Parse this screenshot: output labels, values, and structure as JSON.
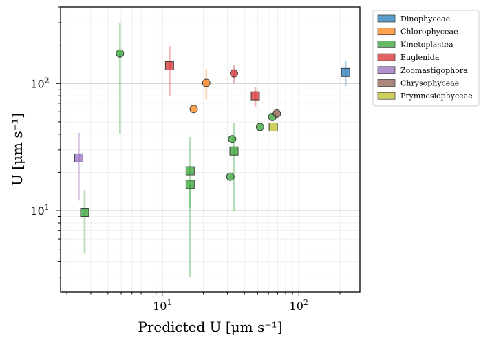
{
  "chart_data": {
    "type": "scatter",
    "xscale": "log",
    "yscale": "log",
    "xlim": [
      1.8,
      280
    ],
    "ylim": [
      2.3,
      400
    ],
    "xlabel": "Predicted U [μm s⁻¹]",
    "ylabel": "U [μm s⁻¹]",
    "x_ticks": [
      {
        "base": "10",
        "exp": "1",
        "value": 10
      },
      {
        "base": "10",
        "exp": "2",
        "value": 100
      }
    ],
    "y_ticks": [
      {
        "base": "10",
        "exp": "1",
        "value": 10
      },
      {
        "base": "10",
        "exp": "2",
        "value": 100
      }
    ],
    "grid": true,
    "legend_position": "outside-top-right",
    "series": [
      {
        "name": "Dinophyceae",
        "color": "#1f77b4",
        "points": [
          {
            "x": 220,
            "y": 122,
            "marker": "square",
            "ylo": 95,
            "yhi": 150
          }
        ]
      },
      {
        "name": "Chlorophyceae",
        "color": "#ff7f0e",
        "points": [
          {
            "x": 21,
            "y": 101,
            "marker": "circle",
            "ylo": 75,
            "yhi": 128
          },
          {
            "x": 17,
            "y": 63,
            "marker": "circle"
          }
        ]
      },
      {
        "name": "Kinetoplastea",
        "color": "#2ca02c",
        "points": [
          {
            "x": 4.9,
            "y": 172,
            "marker": "circle",
            "ylo": 40,
            "yhi": 300
          },
          {
            "x": 2.7,
            "y": 9.7,
            "marker": "square",
            "ylo": 4.6,
            "yhi": 14.5
          },
          {
            "x": 16,
            "y": 20.6,
            "marker": "square",
            "ylo": 10.5,
            "yhi": 38
          },
          {
            "x": 16,
            "y": 16.1,
            "marker": "square",
            "ylo": 3.0,
            "yhi": 16.1
          },
          {
            "x": 33.5,
            "y": 29.5,
            "marker": "square",
            "ylo": 10,
            "yhi": 49
          },
          {
            "x": 32.5,
            "y": 36.5,
            "marker": "circle"
          },
          {
            "x": 31.5,
            "y": 18.5,
            "marker": "circle"
          },
          {
            "x": 52,
            "y": 45.5,
            "marker": "circle"
          },
          {
            "x": 64,
            "y": 54.5,
            "marker": "circle"
          }
        ]
      },
      {
        "name": "Euglenida",
        "color": "#d62728",
        "points": [
          {
            "x": 11.3,
            "y": 138,
            "marker": "square",
            "ylo": 80,
            "yhi": 196
          },
          {
            "x": 33.5,
            "y": 120,
            "marker": "circle",
            "ylo": 100,
            "yhi": 140
          },
          {
            "x": 48,
            "y": 80,
            "marker": "square",
            "ylo": 66,
            "yhi": 94
          }
        ]
      },
      {
        "name": "Zoomastigophora",
        "color": "#9467bd",
        "points": [
          {
            "x": 2.45,
            "y": 26,
            "marker": "square",
            "ylo": 12,
            "yhi": 41
          }
        ]
      },
      {
        "name": "Chrysophyceae",
        "color": "#8c564b",
        "points": [
          {
            "x": 69,
            "y": 58,
            "marker": "circle"
          }
        ]
      },
      {
        "name": "Prymnesiophyceae",
        "color": "#bcbd22",
        "points": [
          {
            "x": 65,
            "y": 45.5,
            "marker": "square"
          }
        ]
      }
    ]
  }
}
